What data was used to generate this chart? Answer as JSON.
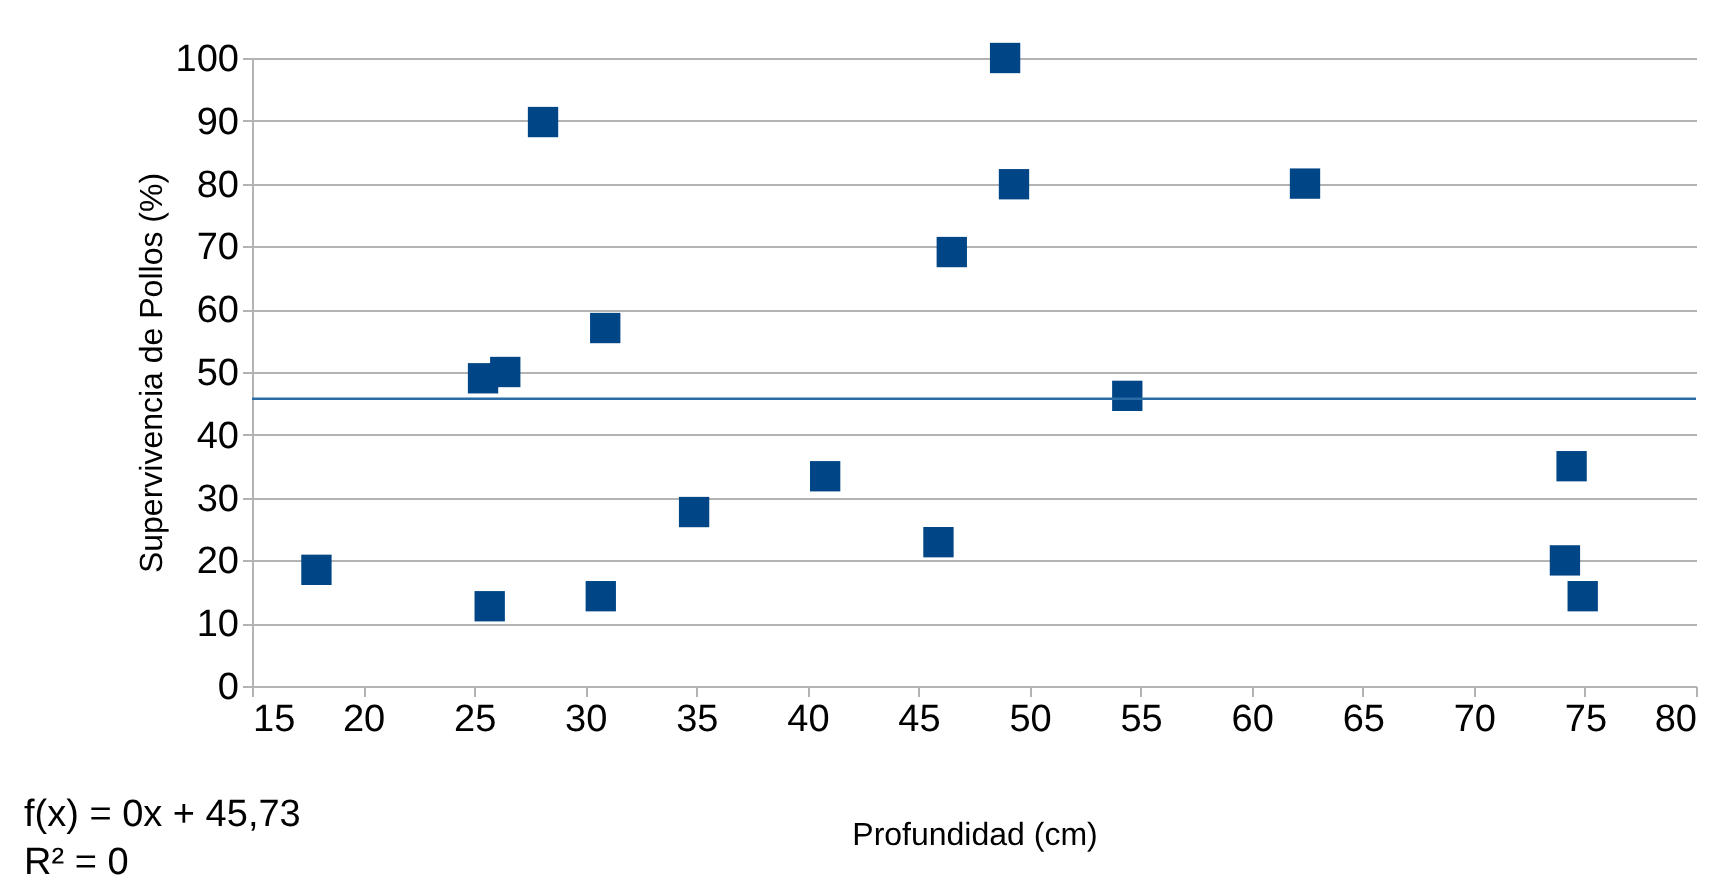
{
  "chart_data": {
    "type": "scatter",
    "xlabel": "Profundidad (cm)",
    "ylabel": "Supervivencia de Pollos (%)",
    "xlim": [
      15,
      80
    ],
    "xticks": [
      15,
      20,
      25,
      30,
      35,
      40,
      45,
      50,
      55,
      60,
      65,
      70,
      75,
      80
    ],
    "ylim": [
      0,
      100
    ],
    "yticks": [
      0,
      10,
      20,
      30,
      40,
      50,
      60,
      70,
      80,
      90,
      100
    ],
    "grid": "y",
    "series": [
      {
        "marker": "square",
        "color": "#004586",
        "x": [
          17.9,
          25.4,
          26.4,
          25.7,
          28.1,
          30.9,
          30.7,
          34.9,
          40.8,
          45.9,
          46.5,
          48.9,
          49.3,
          54.4,
          62.4,
          74.4,
          74.1,
          74.9
        ],
        "values": [
          18.5,
          49,
          50,
          12.7,
          89.8,
          57,
          14.3,
          27.7,
          33.4,
          22.9,
          69.1,
          100,
          79.9,
          46.2,
          80,
          35,
          20,
          14.3
        ]
      },
      {
        "type": "line",
        "color": "#2a6ca6",
        "x": [
          15,
          80
        ],
        "values": [
          45.73,
          45.73
        ]
      }
    ],
    "annotations": [
      "f(x) = 0x + 45,73",
      "R² = 0"
    ]
  }
}
